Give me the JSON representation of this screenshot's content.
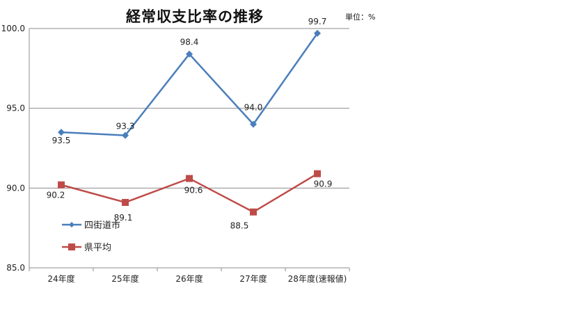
{
  "chart_data": {
    "type": "line",
    "title": "経常収支比率の推移",
    "unit_label": "単位：%",
    "categories": [
      "24年度",
      "25年度",
      "26年度",
      "27年度",
      "28年度(速報値)"
    ],
    "series": [
      {
        "name": "四街道市",
        "values": [
          93.5,
          93.3,
          98.4,
          94.0,
          99.7
        ],
        "color": "#4a7ebb",
        "marker": "diamond",
        "value_labels": [
          "93.5",
          "93.3",
          "98.4",
          "94.0",
          "99.7"
        ]
      },
      {
        "name": "県平均",
        "values": [
          90.2,
          89.1,
          90.6,
          88.5,
          90.9
        ],
        "color": "#be4b48",
        "marker": "square",
        "value_labels": [
          "90.2",
          "89.1",
          "90.6",
          "88.5",
          "90.9"
        ]
      }
    ],
    "ylim": [
      85.0,
      100.0
    ],
    "yticks": [
      "85.0",
      "90.0",
      "95.0",
      "100.0"
    ],
    "grid": true,
    "legend_position": "lower-left-inside"
  }
}
